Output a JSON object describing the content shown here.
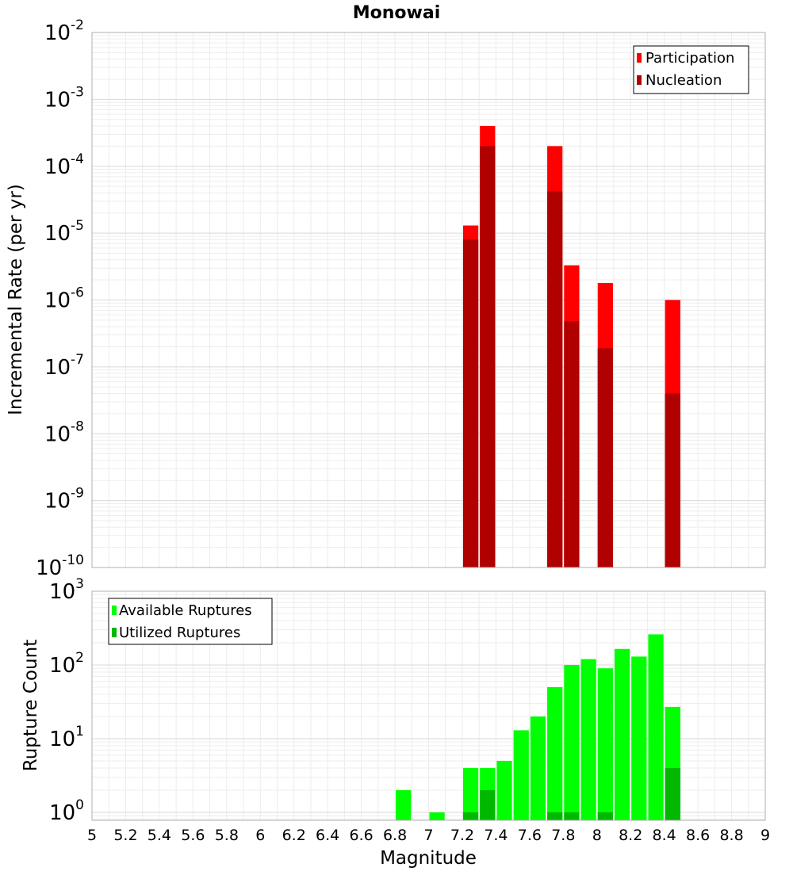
{
  "chart_data": [
    {
      "type": "bar",
      "scale": "log",
      "title": "Monowai",
      "xlabel": "",
      "ylabel": "Incremental Rate (per yr)",
      "xlim": [
        5,
        9
      ],
      "ylim": [
        1e-10,
        0.01
      ],
      "bar_width": 0.1,
      "legend": {
        "position": "top-right",
        "entries": [
          "Participation",
          "Nucleation"
        ]
      },
      "colors": {
        "Participation": "#ff0000",
        "Nucleation": "#b00000"
      },
      "y_ticks": [
        {
          "base": "10",
          "exp": "-10",
          "value": 1e-10
        },
        {
          "base": "10",
          "exp": "-9",
          "value": 1e-09
        },
        {
          "base": "10",
          "exp": "-8",
          "value": 1e-08
        },
        {
          "base": "10",
          "exp": "-7",
          "value": 1e-07
        },
        {
          "base": "10",
          "exp": "-6",
          "value": 1e-06
        },
        {
          "base": "10",
          "exp": "-5",
          "value": 1e-05
        },
        {
          "base": "10",
          "exp": "-4",
          "value": 0.0001
        },
        {
          "base": "10",
          "exp": "-3",
          "value": 0.001
        },
        {
          "base": "10",
          "exp": "-2",
          "value": 0.01
        }
      ],
      "series": [
        {
          "name": "Participation",
          "x": [
            7.25,
            7.35,
            7.75,
            7.85,
            8.05,
            8.45
          ],
          "values": [
            1.3e-05,
            0.0004,
            0.0002,
            3.3e-06,
            1.8e-06,
            1e-06
          ]
        },
        {
          "name": "Nucleation",
          "x": [
            7.25,
            7.35,
            7.75,
            7.85,
            8.05,
            8.45
          ],
          "values": [
            8e-06,
            0.0002,
            4.2e-05,
            4.8e-07,
            1.9e-07,
            4e-08
          ]
        }
      ]
    },
    {
      "type": "bar",
      "scale": "log",
      "title": "",
      "xlabel": "Magnitude",
      "ylabel": "Rupture Count",
      "xlim": [
        5,
        9
      ],
      "ylim": [
        0.78,
        1000
      ],
      "bar_width": 0.1,
      "legend": {
        "position": "top-left",
        "entries": [
          "Available Ruptures",
          "Utilized Ruptures"
        ]
      },
      "colors": {
        "Available Ruptures": "#00ff00",
        "Utilized Ruptures": "#00b800"
      },
      "y_ticks": [
        {
          "base": "10",
          "exp": "0",
          "value": 1
        },
        {
          "base": "10",
          "exp": "1",
          "value": 10
        },
        {
          "base": "10",
          "exp": "2",
          "value": 100
        },
        {
          "base": "10",
          "exp": "3",
          "value": 1000
        }
      ],
      "x_ticks": [
        "5",
        "5.2",
        "5.4",
        "5.6",
        "5.8",
        "6",
        "6.2",
        "6.4",
        "6.6",
        "6.8",
        "7",
        "7.2",
        "7.4",
        "7.6",
        "7.8",
        "8",
        "8.2",
        "8.4",
        "8.6",
        "8.8",
        "9"
      ],
      "series": [
        {
          "name": "Available Ruptures",
          "x": [
            6.85,
            7.05,
            7.25,
            7.35,
            7.45,
            7.55,
            7.65,
            7.75,
            7.85,
            7.95,
            8.05,
            8.15,
            8.25,
            8.35,
            8.45
          ],
          "values": [
            2,
            1,
            4,
            4,
            5,
            13,
            20,
            50,
            100,
            120,
            90,
            165,
            130,
            260,
            27
          ]
        },
        {
          "name": "Utilized Ruptures",
          "x": [
            7.25,
            7.35,
            7.75,
            7.85,
            8.05,
            8.45
          ],
          "values": [
            1,
            2,
            1,
            1,
            1,
            4
          ]
        }
      ]
    }
  ]
}
